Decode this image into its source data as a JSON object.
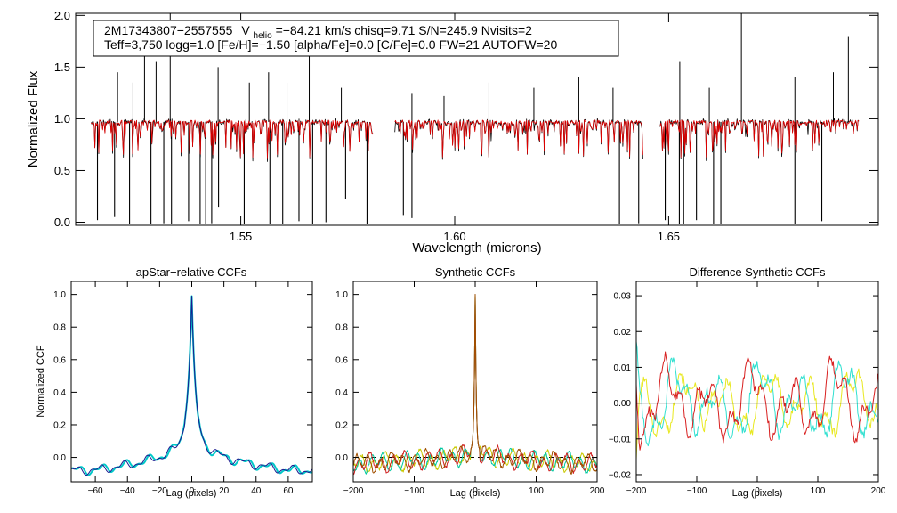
{
  "chart_data": [
    {
      "type": "line",
      "id": "spectrum",
      "title": "",
      "xlabel": "Wavelength (microns)",
      "ylabel": "Normalized Flux",
      "xlim": [
        1.5114,
        1.699
      ],
      "ylim": [
        -0.03,
        2.02
      ],
      "xticks": [
        1.55,
        1.6,
        1.65
      ],
      "xtick_labels": [
        "1.55",
        "1.60",
        "1.65"
      ],
      "yticks": [
        0.0,
        0.5,
        1.0,
        1.5,
        2.0
      ],
      "ytick_labels": [
        "0.0",
        "0.5",
        "1.0",
        "1.5",
        "2.0"
      ],
      "info_line1_star": "2M17343807−2557555",
      "info_line1_vhelio_prefix": "V",
      "info_line1_vhelio_sub": "helio",
      "info_line1_rest": "=−84.21 km/s  chisq=9.71  S/N=245.9  Nvisits=2",
      "info_line2": "Teff=3,750 logg=1.0 [Fe/H]=−1.50 [alpha/Fe]=0.0 [C/Fe]=0.0 FW=21 AUTOFW=20",
      "chips": [
        [
          1.515,
          1.581
        ],
        [
          1.586,
          1.644
        ],
        [
          1.648,
          1.6945
        ]
      ],
      "continuum": 0.97,
      "series": [
        {
          "name": "observed",
          "color": "#000000"
        },
        {
          "name": "model",
          "color": "#e00000"
        }
      ],
      "absorption_lines": [
        {
          "x": 1.5165,
          "depth": 0.95
        },
        {
          "x": 1.5205,
          "depth": 0.92
        },
        {
          "x": 1.524,
          "depth": 0.99
        },
        {
          "x": 1.529,
          "depth": 0.99
        },
        {
          "x": 1.532,
          "depth": 0.98
        },
        {
          "x": 1.5338,
          "depth": 0.99
        },
        {
          "x": 1.5378,
          "depth": 0.96
        },
        {
          "x": 1.5405,
          "depth": 0.99
        },
        {
          "x": 1.5418,
          "depth": 0.99
        },
        {
          "x": 1.5432,
          "depth": 0.98
        },
        {
          "x": 1.5448,
          "depth": 0.82
        },
        {
          "x": 1.5508,
          "depth": 0.99
        },
        {
          "x": 1.5568,
          "depth": 0.99
        },
        {
          "x": 1.5598,
          "depth": 0.99
        },
        {
          "x": 1.5636,
          "depth": 0.96
        },
        {
          "x": 1.5668,
          "depth": 0.99
        },
        {
          "x": 1.5699,
          "depth": 0.97
        },
        {
          "x": 1.5745,
          "depth": 0.75
        },
        {
          "x": 1.5795,
          "depth": 0.99
        },
        {
          "x": 1.588,
          "depth": 0.9
        },
        {
          "x": 1.59,
          "depth": 0.93
        },
        {
          "x": 1.6385,
          "depth": 0.99
        },
        {
          "x": 1.643,
          "depth": 0.98
        },
        {
          "x": 1.6492,
          "depth": 0.95
        },
        {
          "x": 1.6525,
          "depth": 0.99
        },
        {
          "x": 1.6535,
          "depth": 0.99
        },
        {
          "x": 1.6565,
          "depth": 0.95
        },
        {
          "x": 1.6605,
          "depth": 0.99
        },
        {
          "x": 1.6622,
          "depth": 0.99
        },
        {
          "x": 1.6795,
          "depth": 0.99
        },
        {
          "x": 1.6858,
          "depth": 0.96
        }
      ],
      "emission_spikes": [
        {
          "x": 1.5212,
          "height": 1.45
        },
        {
          "x": 1.5248,
          "height": 1.35
        },
        {
          "x": 1.5275,
          "height": 1.8
        },
        {
          "x": 1.5302,
          "height": 1.55
        },
        {
          "x": 1.5335,
          "height": 2.02
        },
        {
          "x": 1.54,
          "height": 1.35
        },
        {
          "x": 1.5447,
          "height": 1.5
        },
        {
          "x": 1.552,
          "height": 1.35
        },
        {
          "x": 1.5565,
          "height": 1.45
        },
        {
          "x": 1.5608,
          "height": 1.35
        },
        {
          "x": 1.566,
          "height": 1.62
        },
        {
          "x": 1.5735,
          "height": 1.3
        },
        {
          "x": 1.59,
          "height": 1.25
        },
        {
          "x": 1.5975,
          "height": 1.22
        },
        {
          "x": 1.608,
          "height": 1.35
        },
        {
          "x": 1.6185,
          "height": 1.3
        },
        {
          "x": 1.629,
          "height": 1.4
        },
        {
          "x": 1.637,
          "height": 1.3
        },
        {
          "x": 1.6526,
          "height": 1.55
        },
        {
          "x": 1.6595,
          "height": 1.3
        },
        {
          "x": 1.667,
          "height": 2.02
        },
        {
          "x": 1.6795,
          "height": 1.4
        },
        {
          "x": 1.6885,
          "height": 1.45
        },
        {
          "x": 1.692,
          "height": 1.8
        }
      ]
    },
    {
      "type": "line",
      "id": "apstar_ccf",
      "title": "apStar−relative CCFs",
      "xlabel": "Lag (pixels)",
      "ylabel": "Normalized CCF",
      "xlim": [
        -75,
        75
      ],
      "ylim": [
        -0.15,
        1.08
      ],
      "xticks": [
        -60,
        -40,
        -20,
        0,
        20,
        40,
        60
      ],
      "xtick_labels": [
        "−60",
        "−40",
        "−20",
        "0",
        "20",
        "40",
        "60"
      ],
      "yticks": [
        0.0,
        0.2,
        0.4,
        0.6,
        0.8,
        1.0
      ],
      "ytick_labels": [
        "0.0",
        "0.2",
        "0.4",
        "0.6",
        "0.8",
        "1.0"
      ],
      "peak": {
        "x": 0,
        "y": 0.99
      },
      "wing_level_at_lag_20": 0.05,
      "edge_level": -0.08,
      "series": [
        {
          "name": "visit 1",
          "color": "#00c8c8"
        },
        {
          "name": "visit 2",
          "color": "#1a1a90"
        }
      ]
    },
    {
      "type": "line",
      "id": "synthetic_ccf",
      "title": "Synthetic CCFs",
      "xlabel": "Lag (pixels)",
      "ylabel": "",
      "xlim": [
        -200,
        200
      ],
      "ylim": [
        -0.15,
        1.08
      ],
      "xticks": [
        -200,
        -100,
        0,
        100,
        200
      ],
      "xtick_labels": [
        "−200",
        "−100",
        "0",
        "100",
        "200"
      ],
      "yticks": [
        0.0,
        0.2,
        0.4,
        0.6,
        0.8,
        1.0
      ],
      "ytick_labels": [
        "0.0",
        "0.2",
        "0.4",
        "0.6",
        "0.8",
        "1.0"
      ],
      "peak": {
        "x": 0,
        "y": 1.0
      },
      "baseline": 0.0,
      "series": [
        {
          "name": "visit 1",
          "color": "#c8c800"
        },
        {
          "name": "visit 2",
          "color": "#00c8a0"
        },
        {
          "name": "visit 3",
          "color": "#d02020"
        },
        {
          "name": "combined",
          "color": "#a05000"
        }
      ]
    },
    {
      "type": "line",
      "id": "difference_ccf",
      "title": "Difference Synthetic CCFs",
      "xlabel": "Lag (pixels)",
      "ylabel": "",
      "xlim": [
        -200,
        200
      ],
      "ylim": [
        -0.022,
        0.034
      ],
      "xticks": [
        -200,
        -100,
        0,
        100,
        200
      ],
      "xtick_labels": [
        "−200",
        "−100",
        "0",
        "100",
        "200"
      ],
      "yticks": [
        -0.02,
        -0.01,
        0.0,
        0.01,
        0.02,
        0.03
      ],
      "ytick_labels": [
        "−0.02",
        "−0.01",
        "0.00",
        "0.01",
        "0.02",
        "0.03"
      ],
      "baseline": 0.0,
      "series": [
        {
          "name": "visit 1",
          "color": "#e8e820",
          "amplitude": 0.01
        },
        {
          "name": "visit 2",
          "color": "#30e0d0",
          "amplitude": 0.012
        },
        {
          "name": "visit 3",
          "color": "#d82020",
          "amplitude": 0.012
        },
        {
          "name": "zero line",
          "color": "#000000"
        }
      ]
    }
  ]
}
